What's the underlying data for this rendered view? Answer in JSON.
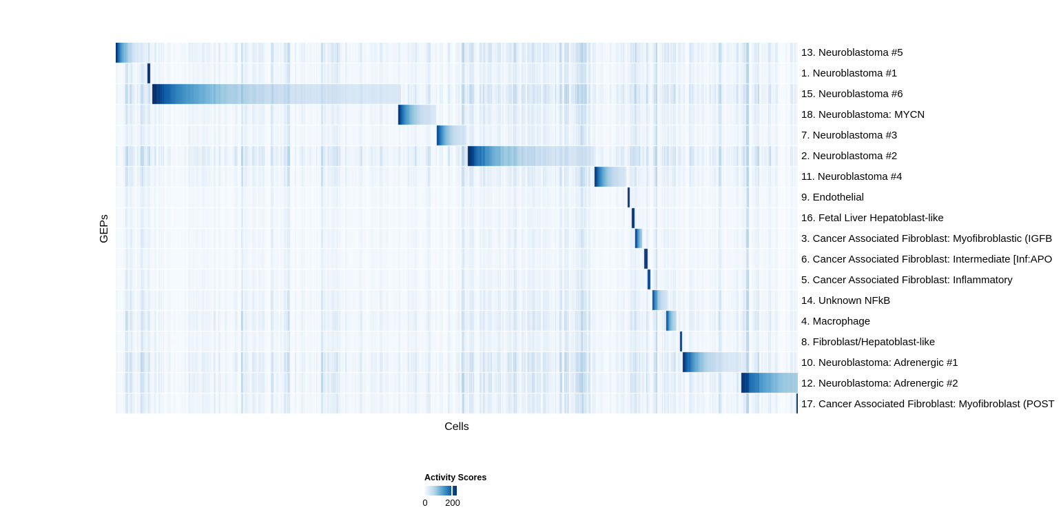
{
  "axes": {
    "x_label": "Cells",
    "y_label": "GEPs"
  },
  "legend": {
    "title": "Activity Scores",
    "ticks": [
      "0",
      "200"
    ],
    "tick_values": [
      0,
      200
    ],
    "scale_max": 230
  },
  "colors": {
    "background": "#ffffff",
    "text": "#000000",
    "colormap_blues": [
      "#f7fbff",
      "#deebf7",
      "#c6dbef",
      "#9ecae1",
      "#6baed6",
      "#4292c6",
      "#2171b5",
      "#08519c",
      "#08306b"
    ]
  },
  "chart_data": {
    "type": "heatmap",
    "title": "",
    "xlabel": "Cells",
    "ylabel": "GEPs",
    "grid": false,
    "colorbar": {
      "label": "Activity Scores",
      "tick_labels": [
        "0",
        "200"
      ],
      "domain": [
        0,
        230
      ],
      "position": "bottom-center"
    },
    "n_rows": 18,
    "description": "Cells (columns, ~990 shown) sorted by assigned GEP; each row shows one GEP's activity score with a dark-to-light block over its assigned cells plus faint columnar background noise.",
    "rows": [
      {
        "label": "13. Neuroblastoma #5",
        "block": {
          "start": 0.0,
          "end": 0.0465,
          "peak": 230,
          "tail": 0,
          "decay": 3.2,
          "profile": "fade"
        },
        "noise": 1.2
      },
      {
        "label": "1. Neuroblastoma #1",
        "block": {
          "start": 0.0455,
          "end": 0.0505,
          "peak": 230,
          "tail": 210,
          "decay": 0,
          "profile": "solid"
        },
        "noise": 0.8
      },
      {
        "label": "15. Neuroblastoma #6",
        "block": {
          "start": 0.0535,
          "end": 0.4172,
          "peak": 230,
          "tail": 28,
          "decay": 4.6,
          "profile": "fade"
        },
        "noise": 1.5
      },
      {
        "label": "18. Neuroblastoma: MYCN",
        "block": {
          "start": 0.4141,
          "end": 0.4687,
          "peak": 230,
          "tail": 22,
          "decay": 3.0,
          "profile": "fade"
        },
        "noise": 0.9
      },
      {
        "label": "7. Neuroblastoma #3",
        "block": {
          "start": 0.4697,
          "end": 0.5141,
          "peak": 230,
          "tail": 22,
          "decay": 3.0,
          "profile": "fade"
        },
        "noise": 0.7
      },
      {
        "label": "2. Neuroblastoma #2",
        "block": {
          "start": 0.5152,
          "end": 0.701,
          "peak": 230,
          "tail": 26,
          "decay": 4.4,
          "profile": "fade"
        },
        "noise": 1.6
      },
      {
        "label": "11. Neuroblastoma #4",
        "block": {
          "start": 0.702,
          "end": 0.7475,
          "peak": 230,
          "tail": 20,
          "decay": 2.8,
          "profile": "fade"
        },
        "noise": 0.9
      },
      {
        "label": "9. Endothelial",
        "block": {
          "start": 0.7495,
          "end": 0.7535,
          "peak": 220,
          "tail": 200,
          "decay": 0,
          "profile": "solid"
        },
        "noise": 0.5
      },
      {
        "label": "16. Fetal Liver Hepatoblast-like",
        "block": {
          "start": 0.7556,
          "end": 0.7596,
          "peak": 220,
          "tail": 200,
          "decay": 0,
          "profile": "solid"
        },
        "noise": 0.5
      },
      {
        "label": "3. Cancer Associated Fibroblast: Myofibroblastic (IGFB",
        "block": {
          "start": 0.7616,
          "end": 0.7717,
          "peak": 230,
          "tail": 50,
          "decay": 2.0,
          "profile": "fade"
        },
        "noise": 0.6
      },
      {
        "label": "6. Cancer Associated Fibroblast: Intermediate [Inf:APO",
        "block": {
          "start": 0.7747,
          "end": 0.7788,
          "peak": 215,
          "tail": 195,
          "decay": 0,
          "profile": "solid"
        },
        "noise": 0.5
      },
      {
        "label": "5. Cancer Associated Fibroblast: Inflammatory",
        "block": {
          "start": 0.7788,
          "end": 0.7838,
          "peak": 205,
          "tail": 185,
          "decay": 0,
          "profile": "solid"
        },
        "noise": 0.6
      },
      {
        "label": "14. Unknown NFkB",
        "block": {
          "start": 0.7859,
          "end": 0.8081,
          "peak": 230,
          "tail": 20,
          "decay": 2.8,
          "profile": "fade"
        },
        "noise": 0.8
      },
      {
        "label": "4. Macrophage",
        "block": {
          "start": 0.8061,
          "end": 0.8222,
          "peak": 230,
          "tail": 28,
          "decay": 2.4,
          "profile": "fade"
        },
        "noise": 1.0
      },
      {
        "label": "8. Fibroblast/Hepatoblast-like",
        "block": {
          "start": 0.8263,
          "end": 0.8303,
          "peak": 210,
          "tail": 190,
          "decay": 0,
          "profile": "solid"
        },
        "noise": 0.7
      },
      {
        "label": "10. Neuroblastoma: Adrenergic #1",
        "block": {
          "start": 0.8313,
          "end": 0.9162,
          "peak": 230,
          "tail": 20,
          "decay": 3.6,
          "profile": "fade"
        },
        "noise": 1.3
      },
      {
        "label": "12. Neuroblastoma: Adrenergic #2",
        "block": {
          "start": 0.9162,
          "end": 1.0,
          "peak": 230,
          "tail": 60,
          "decay": 2.4,
          "profile": "fade"
        },
        "noise": 1.2
      },
      {
        "label": "17. Cancer Associated Fibroblast: Myofibroblast (POST",
        "block": {
          "start": 0.997,
          "end": 1.0,
          "peak": 225,
          "tail": 205,
          "decay": 0,
          "profile": "solid"
        },
        "noise": 0.9
      }
    ],
    "noise_regions": [
      {
        "from": 0.0,
        "to": 0.056,
        "boost": 1.4
      },
      {
        "from": 0.512,
        "to": 0.706,
        "boost": 1.9
      },
      {
        "from": 0.744,
        "to": 0.85,
        "boost": 1.9
      },
      {
        "from": 0.903,
        "to": 0.948,
        "boost": 1.7
      }
    ]
  }
}
